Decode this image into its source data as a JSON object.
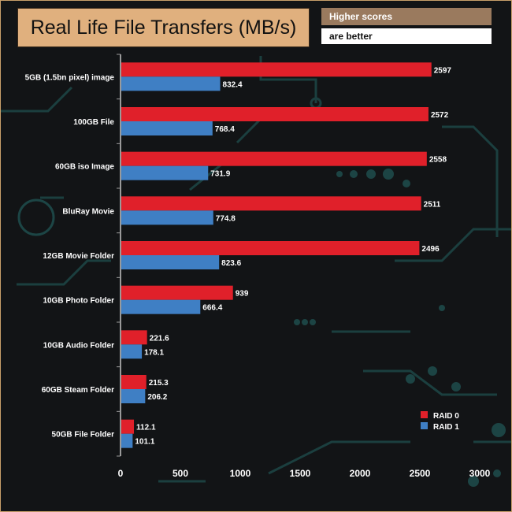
{
  "header": {
    "title": "Real Life File Transfers (MB/s)",
    "badge_line1": "Higher scores",
    "badge_line2": "are better"
  },
  "colors": {
    "raid0": "#e0202a",
    "raid1": "#3f7fc4",
    "title_bg": "#e0b07e",
    "badge_bg": "#9a7a5e",
    "circuit": "#1e4a4a"
  },
  "chart_data": {
    "type": "bar",
    "orientation": "horizontal",
    "title": "Real Life File Transfers (MB/s)",
    "xlabel": "",
    "ylabel": "",
    "xlim": [
      0,
      3000
    ],
    "xticks": [
      0,
      500,
      1000,
      1500,
      2000,
      2500,
      3000
    ],
    "categories": [
      "5GB (1.5bn pixel) image",
      "100GB File",
      "60GB iso Image",
      "BluRay Movie",
      "12GB Movie Folder",
      "10GB Photo Folder",
      "10GB Audio Folder",
      "60GB Steam Folder",
      "50GB File Folder"
    ],
    "series": [
      {
        "name": "RAID 0",
        "color": "#e0202a",
        "values": [
          2597,
          2572,
          2558,
          2511,
          2496,
          939,
          221.6,
          215.3,
          112.1
        ],
        "labels": [
          "2597",
          "2572",
          "2558",
          "2511",
          "2496",
          "939",
          "221.6",
          "215.3",
          "112.1"
        ]
      },
      {
        "name": "RAID 1",
        "color": "#3f7fc4",
        "values": [
          832.4,
          768.4,
          731.9,
          774.8,
          823.6,
          666.4,
          178.1,
          206.2,
          101.1
        ],
        "labels": [
          "832.4",
          "768.4",
          "731.9",
          "774.8",
          "823.6",
          "666.4",
          "178.1",
          "206.2",
          "101.1"
        ]
      }
    ],
    "legend": {
      "position": "bottom-right"
    }
  }
}
